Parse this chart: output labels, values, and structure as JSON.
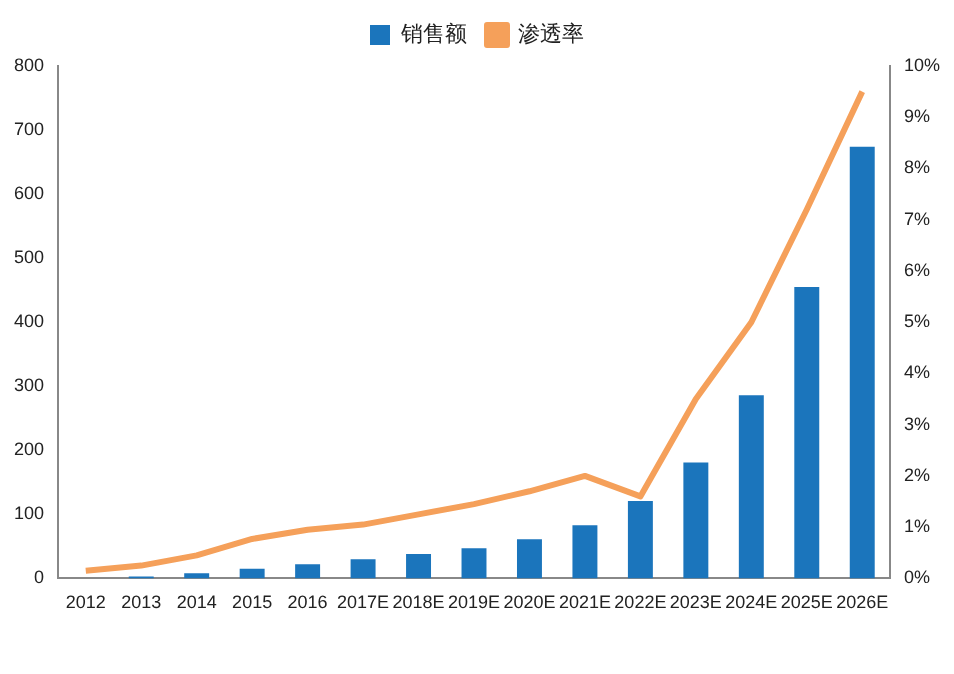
{
  "chart_data": {
    "type": "bar",
    "categories": [
      "2012",
      "2013",
      "2014",
      "2015",
      "2016",
      "2017E",
      "2018E",
      "2019E",
      "2020E",
      "2021E",
      "2022E",
      "2023E",
      "2024E",
      "2025E",
      "2026E"
    ],
    "series": [
      {
        "name": "销售额",
        "color": "#1b75bc",
        "values": [
          null,
          3,
          8,
          15,
          22,
          30,
          38,
          47,
          61,
          83,
          121,
          181,
          286,
          455,
          674
        ]
      },
      {
        "name": "渗透率",
        "type": "line",
        "axis": "y2",
        "color": "#f5a05a",
        "values": [
          0.15,
          0.25,
          0.45,
          0.77,
          0.95,
          1.05,
          1.25,
          1.45,
          1.7,
          2.0,
          1.6,
          3.5,
          5.0,
          7.2,
          9.5
        ]
      }
    ],
    "ylim": [
      0,
      800
    ],
    "yticks": [
      0,
      100,
      200,
      300,
      400,
      500,
      600,
      700,
      800
    ],
    "y2lim": [
      0,
      10
    ],
    "y2ticks": [
      {
        "value": 0,
        "label": "0%"
      },
      {
        "value": 1,
        "label": "1%"
      },
      {
        "value": 2,
        "label": "2%"
      },
      {
        "value": 3,
        "label": "3%"
      },
      {
        "value": 4,
        "label": "4%"
      },
      {
        "value": 5,
        "label": "5%"
      },
      {
        "value": 6,
        "label": "6%"
      },
      {
        "value": 7,
        "label": "7%"
      },
      {
        "value": 8,
        "label": "8%"
      },
      {
        "value": 9,
        "label": "9%"
      },
      {
        "value": 10,
        "label": "10%"
      }
    ],
    "grid": false,
    "legend": "top",
    "marker": "none",
    "line_style": "solid"
  }
}
